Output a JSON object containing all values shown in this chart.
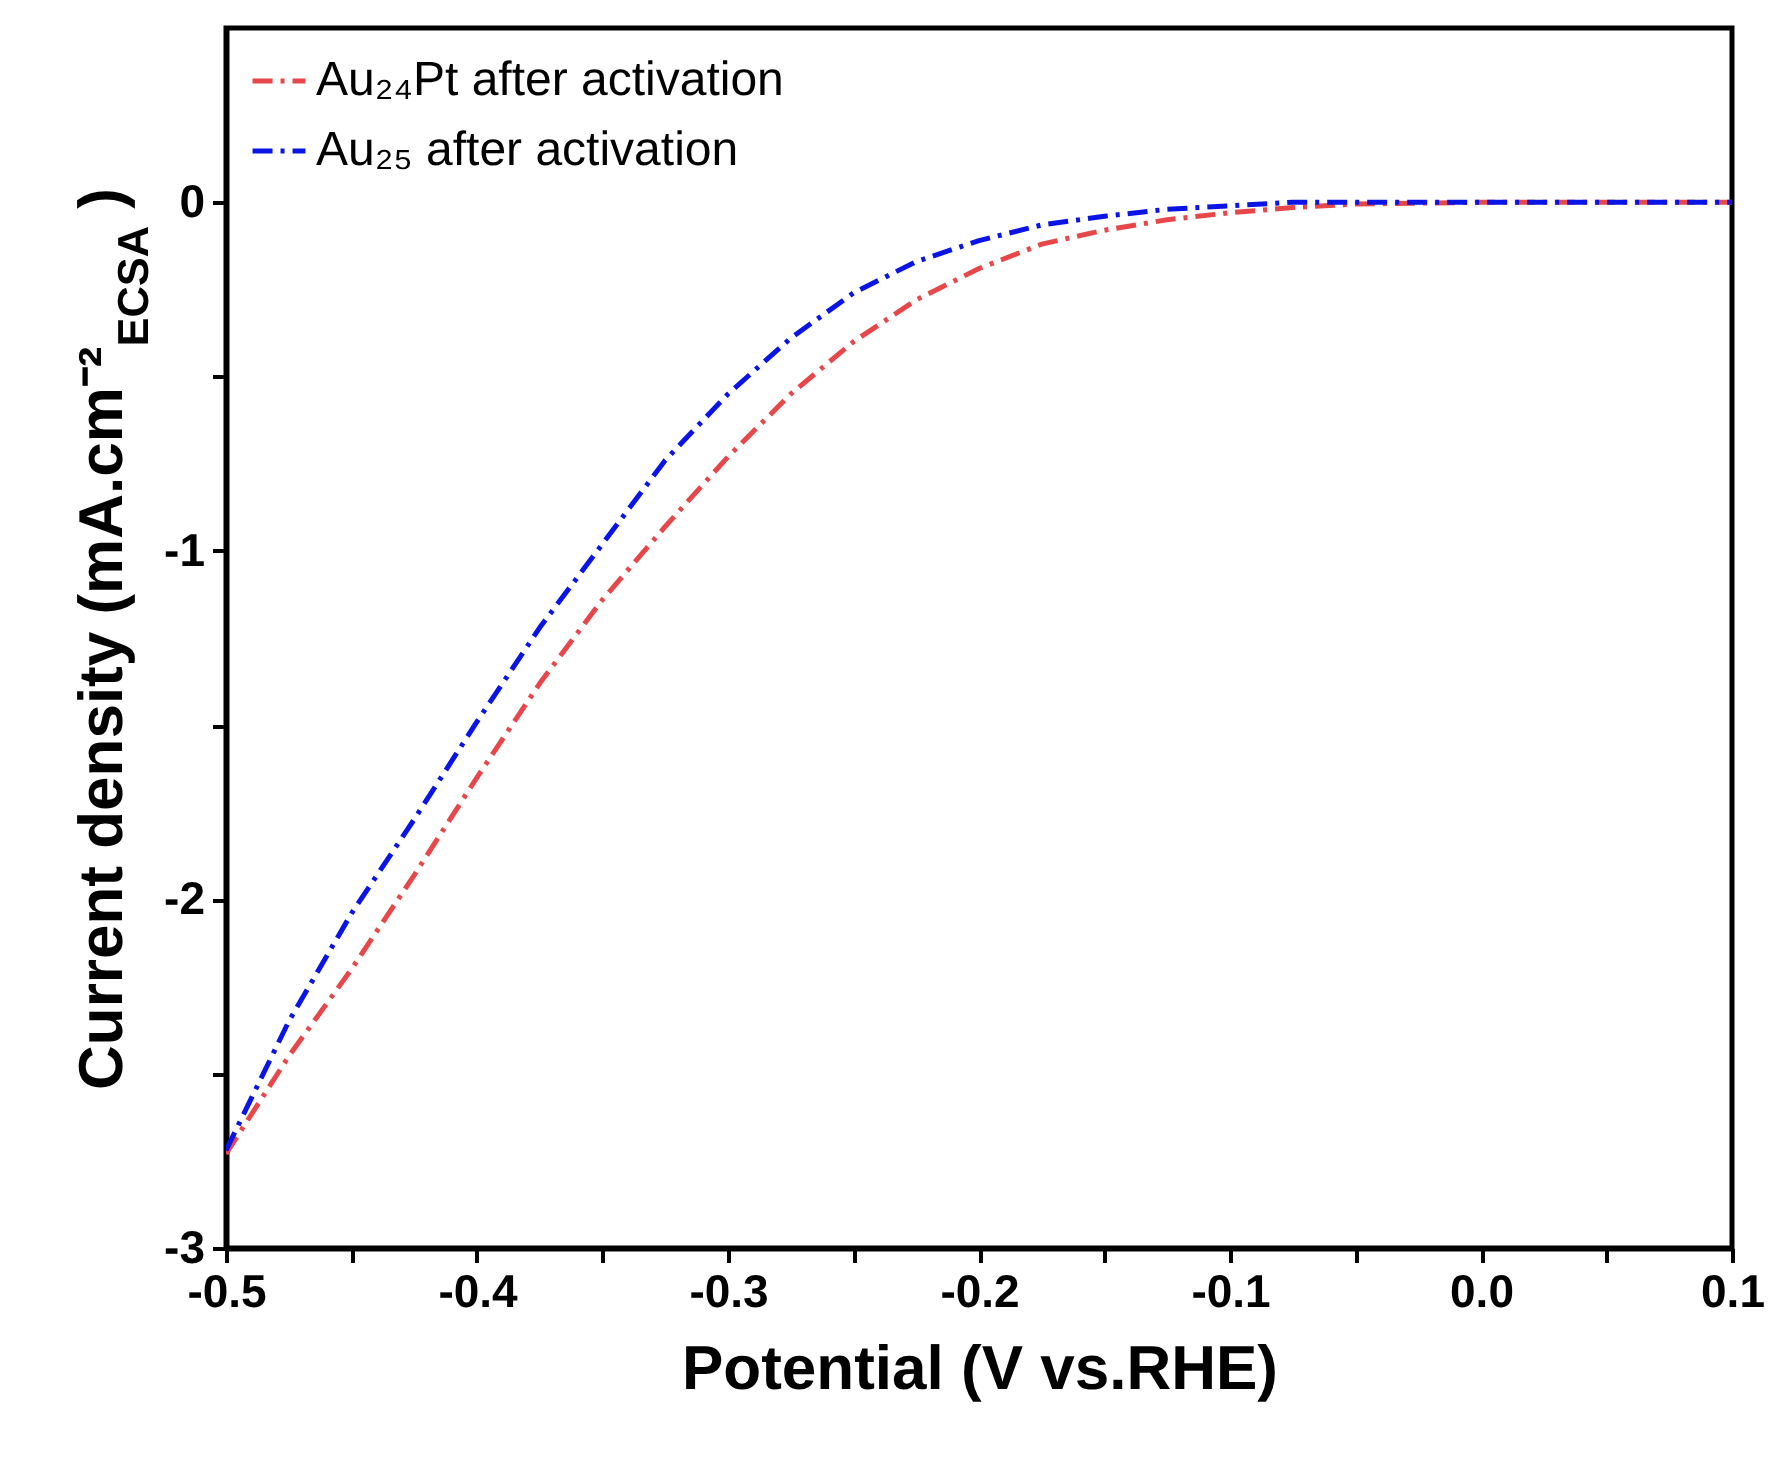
{
  "chart_data": {
    "type": "line",
    "xlabel": "Potential (V vs.RHE)",
    "ylabel": "Current density (mA.cm⁻²$_{ECSA}$ )",
    "xlim": [
      -0.5,
      0.1
    ],
    "xticks": [
      -0.5,
      {
        "value": -0.45,
        "label": null
      },
      -0.4,
      {
        "value": -0.35,
        "label": null
      },
      -0.3,
      {
        "value": -0.25,
        "label": null
      },
      -0.2,
      {
        "value": -0.15,
        "label": null
      },
      -0.1,
      {
        "value": -0.05,
        "label": null
      },
      {
        "value": 0,
        "label": "0.0"
      },
      {
        "value": 0.05,
        "label": null
      },
      0.1
    ],
    "ylim": [
      -3,
      0.5
    ],
    "yticks": [
      -3,
      {
        "value": -2.5,
        "label": null
      },
      -2,
      {
        "value": -1.5,
        "label": null
      },
      -1,
      {
        "value": -0.5,
        "label": null
      },
      0
    ],
    "grid": false,
    "legend": "top left",
    "line_style": "dashed",
    "marker": "none",
    "x": [
      -0.5,
      -0.475,
      -0.45,
      -0.425,
      -0.4,
      -0.375,
      -0.35,
      -0.325,
      -0.3,
      -0.275,
      -0.25,
      -0.225,
      -0.2,
      -0.175,
      -0.15,
      -0.125,
      -0.1,
      -0.075,
      -0.05,
      0,
      0.05,
      0.1
    ],
    "series": [
      {
        "name": "Au₂₄Pt after activation",
        "color": "#e8474a",
        "values": [
          -2.73,
          -2.45,
          -2.2,
          -1.93,
          -1.65,
          -1.38,
          -1.14,
          -0.93,
          -0.73,
          -0.55,
          -0.4,
          -0.28,
          -0.19,
          -0.12,
          -0.08,
          -0.05,
          -0.03,
          -0.015,
          -0.005,
          0,
          0,
          0
        ]
      },
      {
        "name": "Au₂₅ after activation",
        "color": "#0a14e6",
        "values": [
          -2.72,
          -2.35,
          -2.04,
          -1.77,
          -1.49,
          -1.22,
          -0.98,
          -0.74,
          -0.55,
          -0.39,
          -0.26,
          -0.17,
          -0.11,
          -0.065,
          -0.04,
          -0.02,
          -0.01,
          0,
          0,
          0,
          0,
          0
        ]
      }
    ]
  }
}
